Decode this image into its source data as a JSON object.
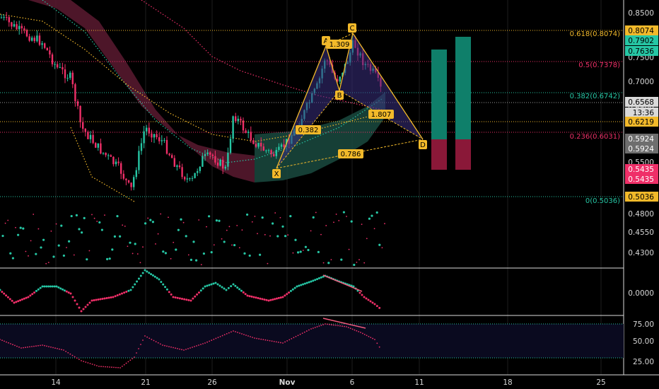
{
  "chart_data": {
    "type": "candlestick",
    "colors": {
      "up": "#26c6a4",
      "down": "#ef2f68",
      "pattern": "#f2b92a",
      "fib": "#f2b92a",
      "axis_text": "#d8d8d8",
      "grid": "#1e1e1e",
      "tag_default": "#9c9c9c"
    },
    "x_axis": {
      "ticks": [
        "14",
        "21",
        "26",
        "Nov",
        "6",
        "11",
        "18",
        "25"
      ]
    },
    "y_axis": {
      "ticks": [
        "0.8500",
        "0.7500",
        "0.7000",
        "0.6500",
        "0.5500",
        "0.5036",
        "0.4800",
        "0.4550",
        "0.4300"
      ],
      "tags": [
        {
          "label": "0.8074",
          "bg": "#f2b92a",
          "fg": "#000000"
        },
        {
          "label": "0.7902",
          "bg": "#26c6a4",
          "fg": "#000000"
        },
        {
          "label": "0.7636",
          "bg": "#26c6a4",
          "fg": "#000000"
        },
        {
          "label": "0.6568",
          "bg": "#d9d9d9",
          "fg": "#000000"
        },
        {
          "label": "13:36",
          "bg": "#d9d9d9",
          "fg": "#000000"
        },
        {
          "label": "0.6219",
          "bg": "#f2b92a",
          "fg": "#000000"
        },
        {
          "label": "0.5924",
          "bg": "#6e6e6e",
          "fg": "#ffffff"
        },
        {
          "label": "0.5924",
          "bg": "#6e6e6e",
          "fg": "#ffffff"
        },
        {
          "label": "0.5435",
          "bg": "#ef2f68",
          "fg": "#ffffff"
        },
        {
          "label": "0.5435",
          "bg": "#ef2f68",
          "fg": "#ffffff"
        },
        {
          "label": "0.5036",
          "bg": "#f2b92a",
          "fg": "#000000"
        }
      ]
    },
    "fib_levels": [
      {
        "label": "0.618(0.8074)",
        "color": "#f2b92a"
      },
      {
        "label": "0.5(0.7378)",
        "color": "#ef2f68"
      },
      {
        "label": "0.382(0.6742)",
        "color": "#26c6a4"
      },
      {
        "label": "0.236(0.6031)",
        "color": "#ef2f68"
      },
      {
        "label": "0(0.5036)",
        "color": "#26c6a4"
      }
    ],
    "pattern": {
      "points": [
        "X",
        "A",
        "B",
        "C",
        "D"
      ],
      "ratios": [
        "1.309",
        "0.382",
        "1.807",
        "0.786"
      ]
    },
    "oscillator_2": {
      "ticks": [
        "0.0000"
      ]
    },
    "oscillator_3": {
      "ticks": [
        "75.00",
        "50.00",
        "25.00"
      ]
    }
  }
}
